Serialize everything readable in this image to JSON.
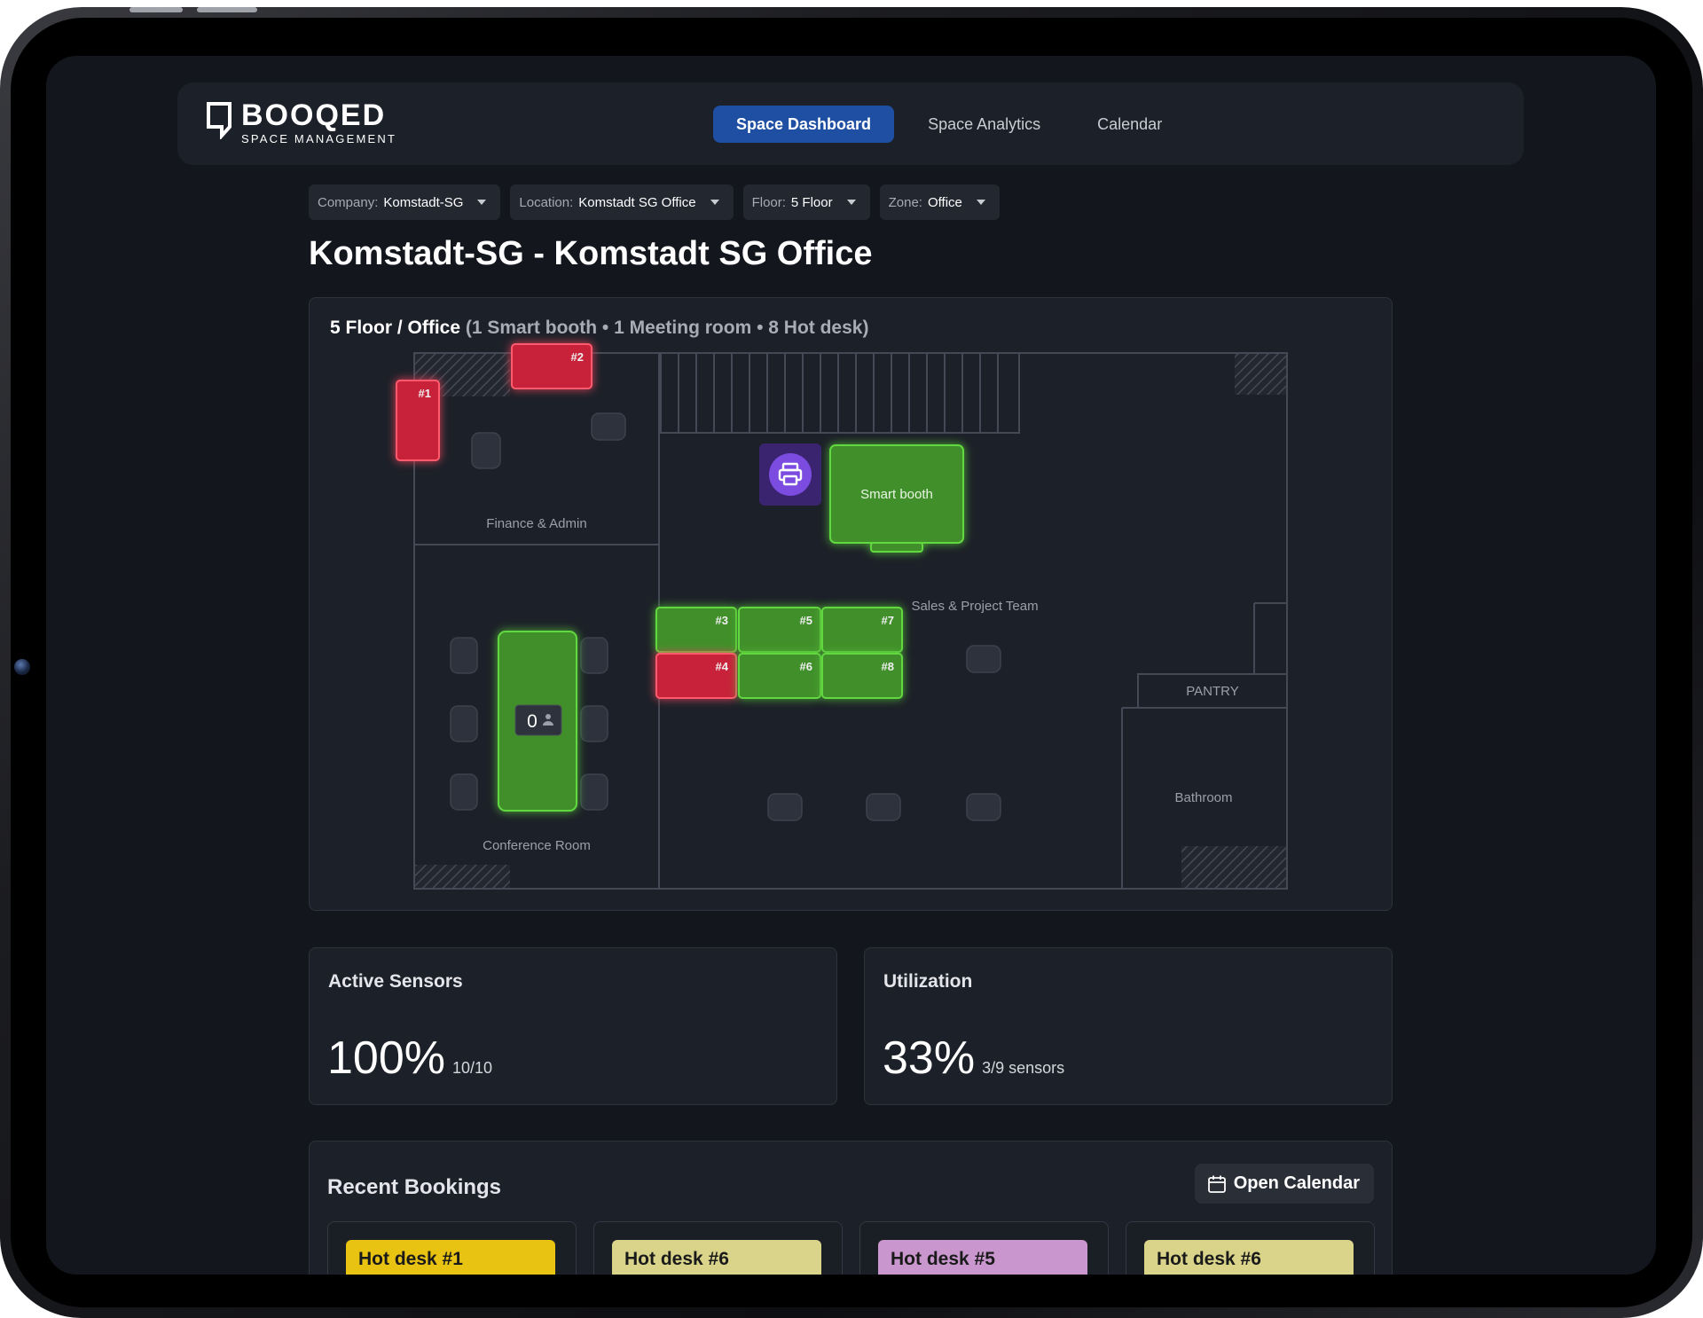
{
  "app": {
    "logo": {
      "name": "BOOQED",
      "subtitle": "SPACE MANAGEMENT"
    },
    "nav": [
      {
        "label": "Space Dashboard",
        "active": true
      },
      {
        "label": "Space Analytics",
        "active": false
      },
      {
        "label": "Calendar",
        "active": false
      }
    ]
  },
  "filters": [
    {
      "label": "Company:",
      "value": "Komstadt-SG"
    },
    {
      "label": "Location:",
      "value": "Komstadt SG Office"
    },
    {
      "label": "Floor:",
      "value": "5 Floor"
    },
    {
      "label": "Zone:",
      "value": "Office"
    }
  ],
  "page_title": "Komstadt-SG - Komstadt SG Office",
  "floorplan": {
    "header": "5 Floor / Office",
    "summary": "(1 Smart booth • 1 Meeting room • 8 Hot desk)",
    "colors": {
      "available": "#3f8f2c",
      "occupied": "#c8213a",
      "printer": "#5b32b0"
    },
    "rooms": {
      "finance": "Finance & Admin",
      "conference": "Conference Room",
      "sales": "Sales & Project Team",
      "pantry": "PANTRY",
      "bathroom": "Bathroom"
    },
    "smart_booth": {
      "label": "Smart booth",
      "status": "available"
    },
    "meeting_room": {
      "occupancy": "0",
      "status": "available"
    },
    "printer_icon": "printer-icon",
    "desks": [
      {
        "label": "#1",
        "status": "occupied"
      },
      {
        "label": "#2",
        "status": "occupied"
      },
      {
        "label": "#3",
        "status": "available"
      },
      {
        "label": "#4",
        "status": "occupied"
      },
      {
        "label": "#5",
        "status": "available"
      },
      {
        "label": "#6",
        "status": "available"
      },
      {
        "label": "#7",
        "status": "available"
      },
      {
        "label": "#8",
        "status": "available"
      }
    ]
  },
  "stats": {
    "active_sensors": {
      "title": "Active Sensors",
      "value": "100%",
      "detail": "10/10"
    },
    "utilization": {
      "title": "Utilization",
      "value": "33%",
      "detail": "3/9 sensors"
    }
  },
  "bookings": {
    "title": "Recent Bookings",
    "open_calendar": "Open Calendar",
    "items": [
      {
        "label": "Hot desk #1",
        "color": "#e8c312"
      },
      {
        "label": "Hot desk #6",
        "color": "#d9d48a"
      },
      {
        "label": "Hot desk #5",
        "color": "#c997cd"
      },
      {
        "label": "Hot desk #6",
        "color": "#d9d48a"
      }
    ]
  }
}
